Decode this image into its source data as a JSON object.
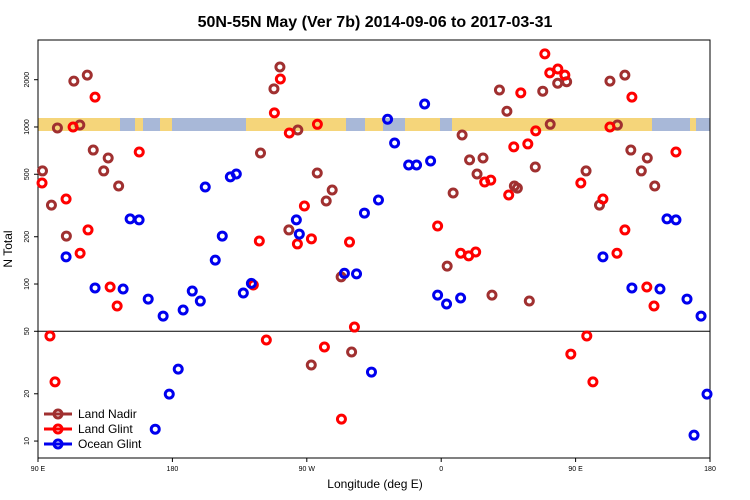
{
  "chart_data": {
    "type": "scatter",
    "title": "50N-55N May (Ver 7b)   2014-09-06 to 2017-03-31",
    "x_label": "Longitude (deg E)",
    "y_label": "N Total",
    "xlim": [
      90,
      540
    ],
    "xticks": [
      {
        "value": 90,
        "label": "90 E"
      },
      {
        "value": 180,
        "label": "180"
      },
      {
        "value": 270,
        "label": "90 W"
      },
      {
        "value": 360,
        "label": "0"
      },
      {
        "value": 450,
        "label": "90 E"
      },
      {
        "value": 540,
        "label": "180"
      }
    ],
    "ylog": true,
    "ylim": [
      7.8,
      3580
    ],
    "yticks": [
      10,
      20,
      50,
      100,
      200,
      500,
      1000,
      2000
    ],
    "reference_line": 50,
    "legend": "bottom-left",
    "series": [
      {
        "name": "Land Nadir",
        "color": "#a03030",
        "x": [
          93,
          99,
          103,
          109,
          114,
          118,
          123,
          127,
          134,
          137,
          144,
          239,
          248,
          252,
          258,
          264,
          277,
          283,
          287,
          273,
          293,
          300,
          368,
          364,
          374,
          379,
          384,
          388,
          394,
          399,
          404,
          409,
          411,
          419,
          423,
          428,
          433,
          438,
          444,
          457,
          466,
          473,
          478,
          483,
          487,
          494,
          498,
          503
        ],
        "values": [
          525,
          318,
          986,
          202,
          1960,
          1030,
          2140,
          713,
          525,
          635,
          421,
          683,
          1750,
          2410,
          221,
          957,
          509,
          338,
          397,
          30.5,
          111,
          36.9,
          380,
          130,
          889,
          617,
          502,
          635,
          85,
          1720,
          1260,
          421,
          408,
          78,
          556,
          1690,
          1040,
          1900,
          1940,
          525,
          318,
          1960,
          1030,
          2140,
          713,
          525,
          635,
          421
        ]
      },
      {
        "name": "Land Glint",
        "color": "#ff0000",
        "x": [
          92.7,
          98,
          101.4,
          108.8,
          113.5,
          118.2,
          123.5,
          128.2,
          138.3,
          143,
          157.8,
          234.2,
          238.2,
          242.9,
          248.3,
          252.3,
          258.3,
          263.7,
          268.4,
          273.1,
          277.1,
          281.8,
          293.2,
          298.6,
          301.9,
          357.6,
          373,
          378.4,
          383.1,
          389.1,
          393.2,
          405.2,
          408.6,
          413.3,
          418,
          423.3,
          429.4,
          432.7,
          438.1,
          442.8,
          446.8,
          453.5,
          457.5,
          461.6,
          468.3,
          473,
          477.7,
          483,
          487.7,
          497.7,
          502.5,
          517.2
        ],
        "values": [
          440,
          46.7,
          23.8,
          348,
          1000,
          157,
          221,
          1550,
          95.7,
          72.4,
          693,
          98.6,
          188,
          44,
          1230,
          2020,
          916,
          180,
          314,
          194,
          1040,
          39.7,
          13.8,
          185,
          53.2,
          234,
          157,
          151,
          160,
          446,
          459,
          369,
          747,
          1650,
          780,
          944,
          2920,
          2210,
          2340,
          2140,
          35.8,
          440,
          46.7,
          23.8,
          348,
          1000,
          157,
          221,
          1550,
          95.7,
          72.4,
          693
        ]
      },
      {
        "name": "Ocean Glint",
        "color": "#0000ee",
        "x": [
          108.8,
          128.2,
          147,
          151.7,
          157.7,
          163.8,
          168.5,
          173.8,
          177.9,
          183.9,
          187.2,
          193.3,
          198.7,
          202,
          208.7,
          213.4,
          218.8,
          222.8,
          227.5,
          232.9,
          263,
          265,
          295.2,
          303.3,
          308.6,
          313.3,
          318,
          324.1,
          328.8,
          338.2,
          343.5,
          348.9,
          352.9,
          357.6,
          363.6,
          373,
          468.3,
          487.7,
          506.5,
          511.2,
          517.2,
          524.6,
          529.3,
          534,
          538
        ],
        "values": [
          149,
          94.4,
          92.9,
          260,
          256,
          80.2,
          11.9,
          62.5,
          19.9,
          28.7,
          68.3,
          90.2,
          77.9,
          415,
          142,
          202,
          481,
          502,
          87.7,
          101,
          256,
          208,
          117,
          116,
          283,
          27.5,
          343,
          1120,
          791,
          573,
          573,
          1400,
          607,
          85,
          74.6,
          81.5,
          149,
          94.4,
          92.9,
          260,
          256,
          80.2,
          10.9,
          62.5,
          19.9
        ]
      }
    ]
  }
}
